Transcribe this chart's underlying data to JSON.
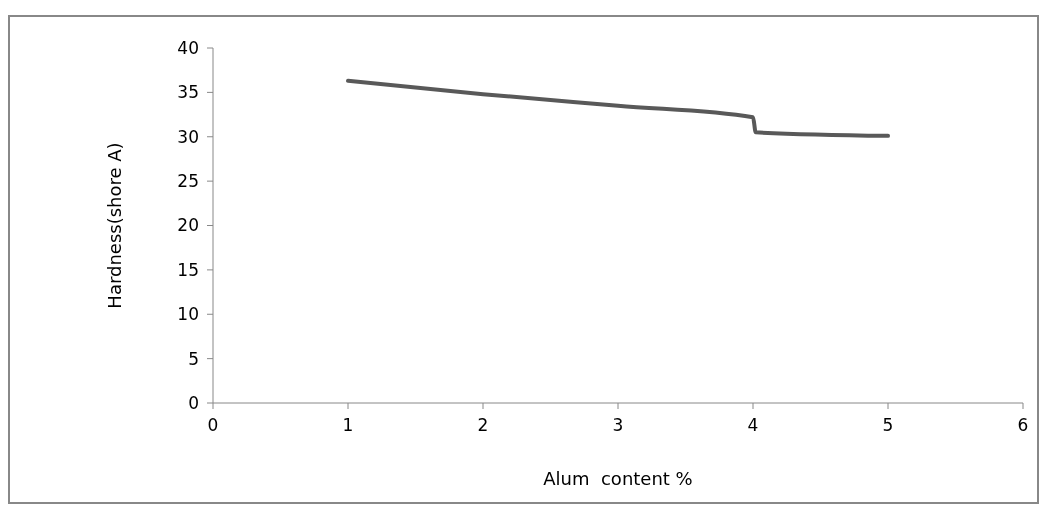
{
  "chart_data": {
    "type": "line",
    "xlabel": "Alum  content %",
    "ylabel": "Hardness(shore A)",
    "x": [
      1,
      2,
      3,
      4,
      4.02,
      5
    ],
    "series": [
      {
        "color": "#595959",
        "values": [
          36.3,
          34.8,
          33.5,
          32.2,
          30.5,
          30.1
        ]
      }
    ],
    "xlim": [
      0,
      6
    ],
    "xticks": [
      0,
      1,
      2,
      3,
      4,
      5,
      6
    ],
    "ylim": [
      0,
      40
    ],
    "yticks": [
      0,
      5,
      10,
      15,
      20,
      25,
      30,
      35,
      40
    ],
    "grid": false,
    "marker": "none",
    "line_style": "solid"
  }
}
